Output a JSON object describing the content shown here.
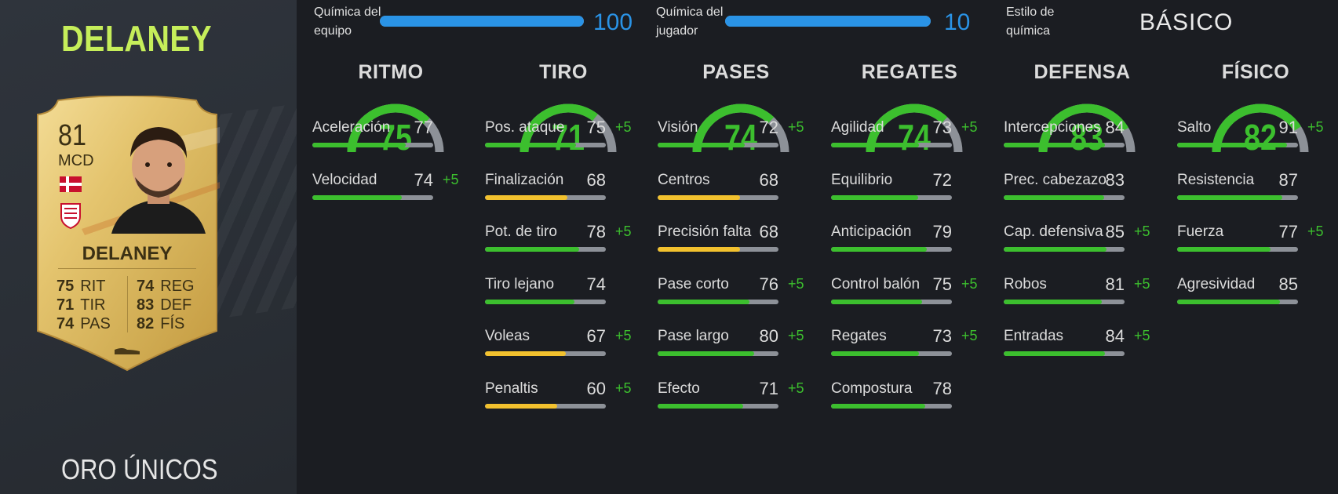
{
  "player": {
    "name": "DELANEY",
    "card_type": "ORO ÚNICOS",
    "rating": "81",
    "position": "MCD",
    "card_name": "DELANEY",
    "card_stats": [
      {
        "value": "75",
        "label": "RIT"
      },
      {
        "value": "71",
        "label": "TIR"
      },
      {
        "value": "74",
        "label": "PAS"
      },
      {
        "value": "74",
        "label": "REG"
      },
      {
        "value": "83",
        "label": "DEF"
      },
      {
        "value": "82",
        "label": "FÍS"
      }
    ]
  },
  "chemistry": {
    "team": {
      "label_line1": "Química del",
      "label_line2": "equipo",
      "value": "100",
      "fill_percent": 100
    },
    "player": {
      "label_line1": "Química del",
      "label_line2": "jugador",
      "value": "10",
      "fill_percent": 100
    },
    "style": {
      "label_line1": "Estilo de",
      "label_line2": "química",
      "value": "BÁSICO"
    }
  },
  "colors": {
    "accent_green": "#3cbf2e",
    "bar_yellow": "#f2c12e",
    "chem_blue": "#2a93e6",
    "title_green": "#c6ee5a"
  },
  "categories": [
    {
      "title": "RITMO",
      "value": "75",
      "attributes": [
        {
          "name": "Aceleración",
          "value": "77",
          "boost": ""
        },
        {
          "name": "Velocidad",
          "value": "74",
          "boost": "+5"
        }
      ]
    },
    {
      "title": "TIRO",
      "value": "71",
      "attributes": [
        {
          "name": "Pos. ataque",
          "value": "75",
          "boost": "+5"
        },
        {
          "name": "Finalización",
          "value": "68",
          "boost": ""
        },
        {
          "name": "Pot. de tiro",
          "value": "78",
          "boost": "+5"
        },
        {
          "name": "Tiro lejano",
          "value": "74",
          "boost": ""
        },
        {
          "name": "Voleas",
          "value": "67",
          "boost": "+5"
        },
        {
          "name": "Penaltis",
          "value": "60",
          "boost": "+5"
        }
      ]
    },
    {
      "title": "PASES",
      "value": "74",
      "attributes": [
        {
          "name": "Visión",
          "value": "72",
          "boost": "+5"
        },
        {
          "name": "Centros",
          "value": "68",
          "boost": ""
        },
        {
          "name": "Precisión falta",
          "value": "68",
          "boost": ""
        },
        {
          "name": "Pase corto",
          "value": "76",
          "boost": "+5"
        },
        {
          "name": "Pase largo",
          "value": "80",
          "boost": "+5"
        },
        {
          "name": "Efecto",
          "value": "71",
          "boost": "+5"
        }
      ]
    },
    {
      "title": "REGATES",
      "value": "74",
      "attributes": [
        {
          "name": "Agilidad",
          "value": "73",
          "boost": "+5"
        },
        {
          "name": "Equilibrio",
          "value": "72",
          "boost": ""
        },
        {
          "name": "Anticipación",
          "value": "79",
          "boost": ""
        },
        {
          "name": "Control balón",
          "value": "75",
          "boost": "+5"
        },
        {
          "name": "Regates",
          "value": "73",
          "boost": "+5"
        },
        {
          "name": "Compostura",
          "value": "78",
          "boost": ""
        }
      ]
    },
    {
      "title": "DEFENSA",
      "value": "83",
      "attributes": [
        {
          "name": "Intercepciones",
          "value": "84",
          "boost": ""
        },
        {
          "name": "Prec. cabezazo",
          "value": "83",
          "boost": ""
        },
        {
          "name": "Cap. defensiva",
          "value": "85",
          "boost": "+5"
        },
        {
          "name": "Robos",
          "value": "81",
          "boost": "+5"
        },
        {
          "name": "Entradas",
          "value": "84",
          "boost": "+5"
        }
      ]
    },
    {
      "title": "FÍSICO",
      "value": "82",
      "attributes": [
        {
          "name": "Salto",
          "value": "91",
          "boost": "+5"
        },
        {
          "name": "Resistencia",
          "value": "87",
          "boost": ""
        },
        {
          "name": "Fuerza",
          "value": "77",
          "boost": "+5"
        },
        {
          "name": "Agresividad",
          "value": "85",
          "boost": ""
        }
      ]
    }
  ]
}
